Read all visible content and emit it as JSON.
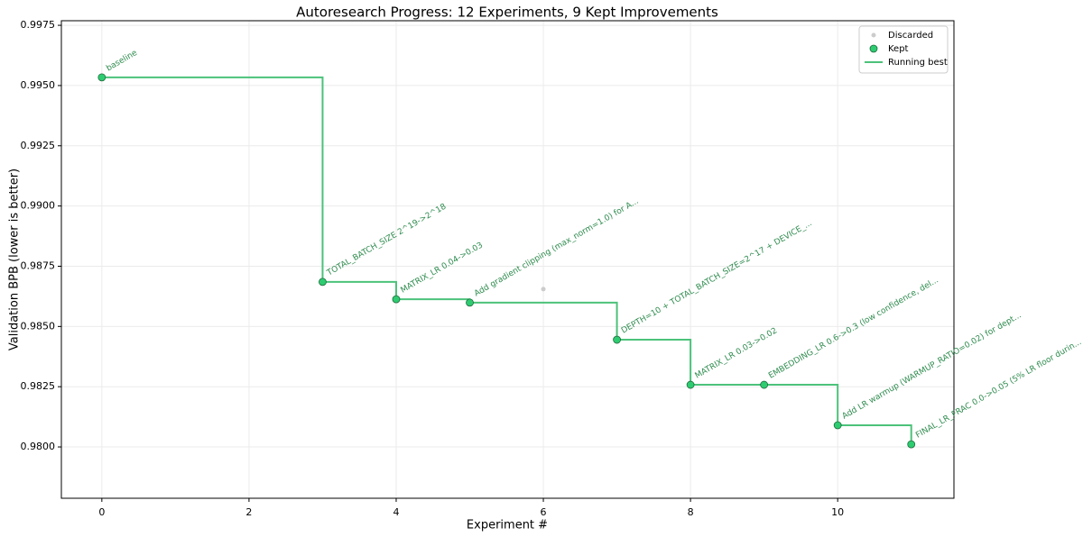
{
  "chart_data": {
    "type": "scatter",
    "title": "Autoresearch Progress: 12 Experiments, 9 Kept Improvements",
    "x_label": "Experiment #",
    "y_label": "Validation BPB (lower is better)",
    "xlim": [
      -0.55,
      11.58
    ],
    "ylim": [
      0.97787,
      0.99769
    ],
    "xticks": [
      0,
      2,
      4,
      6,
      8,
      10
    ],
    "yticks": [
      {
        "value": 0.98,
        "label": "0.9800"
      },
      {
        "value": 0.9825,
        "label": "0.9825"
      },
      {
        "value": 0.985,
        "label": "0.9850"
      },
      {
        "value": 0.9875,
        "label": "0.9875"
      },
      {
        "value": 0.99,
        "label": "0.9900"
      },
      {
        "value": 0.9925,
        "label": "0.9925"
      },
      {
        "value": 0.995,
        "label": "0.9950"
      },
      {
        "value": 0.9975,
        "label": "0.9975"
      }
    ],
    "grid": true,
    "legend": "upper right",
    "series": [
      {
        "name": "Discarded",
        "kind": "points",
        "color": "#cccccc",
        "x": [
          6
        ],
        "values": [
          0.98655
        ]
      },
      {
        "name": "Kept",
        "kind": "points",
        "color": "#2ecc71",
        "edge": "#1e6b3c",
        "x": [
          0,
          3,
          4,
          5,
          7,
          8,
          9,
          10,
          11
        ],
        "values": [
          0.99534,
          0.98685,
          0.98613,
          0.98599,
          0.98445,
          0.98258,
          0.98258,
          0.9809,
          0.98011
        ],
        "labels": [
          "baseline",
          "TOTAL_BATCH_SIZE 2^19->2^18",
          "MATRIX_LR 0.04->0.03",
          "Add gradient clipping (max_norm=1.0) for A...",
          "DEPTH=10 + TOTAL_BATCH_SIZE=2^17 + DEVICE_...",
          "MATRIX_LR 0.03->0.02",
          "EMBEDDING_LR 0.6->0.3 (low confidence, del...",
          "Add LR warmup (WARMUP_RATIO=0.02) for dept...",
          "FINAL_LR_FRAC 0.0->0.05 (5% LR floor durin..."
        ],
        "label_color": "#2e8b4e"
      },
      {
        "name": "Running best",
        "kind": "step",
        "color": "#4cc27a",
        "x": [
          0,
          3,
          4,
          5,
          7,
          8,
          9,
          10,
          11
        ],
        "values": [
          0.99534,
          0.98685,
          0.98613,
          0.98599,
          0.98445,
          0.98258,
          0.98258,
          0.9809,
          0.98011
        ]
      }
    ]
  }
}
